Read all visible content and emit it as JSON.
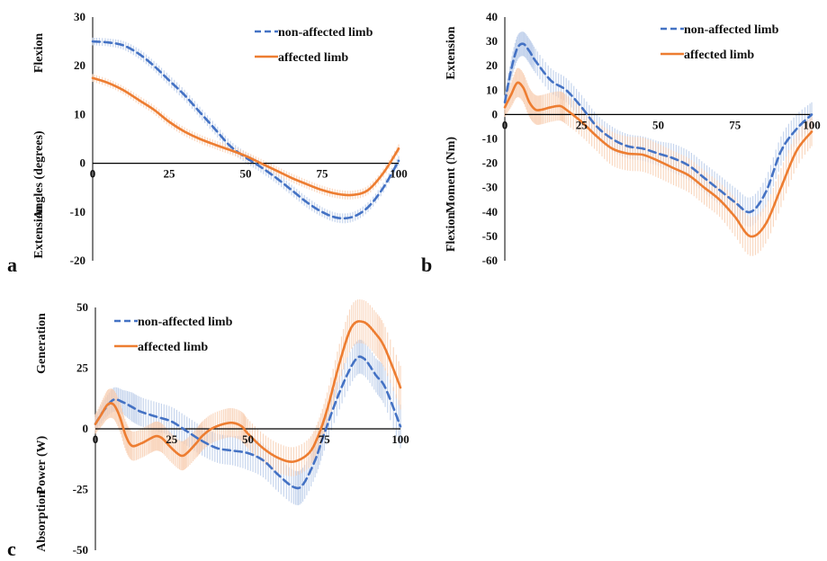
{
  "colors": {
    "non_affected": "#4472C4",
    "non_affected_band": "#B4C7E7",
    "affected": "#ED7D31",
    "affected_band": "#F8CBAD"
  },
  "chart_data": [
    {
      "type": "line",
      "panel": "a",
      "ylabel": "Angles (degrees)",
      "ylabel_top": "Flexion",
      "ylabel_bottom": "Extension",
      "xlim": [
        0,
        100
      ],
      "ylim": [
        -20,
        30
      ],
      "xticks": [
        0,
        25,
        50,
        75,
        100
      ],
      "yticks": [
        -20,
        -10,
        0,
        10,
        20,
        30
      ],
      "legend": "top-right",
      "series": [
        {
          "name": "non-affected limb",
          "style": "dashed",
          "x": [
            0,
            5,
            10,
            15,
            20,
            25,
            30,
            35,
            40,
            45,
            50,
            55,
            60,
            65,
            70,
            75,
            80,
            85,
            90,
            95,
            100
          ],
          "y": [
            25,
            24.8,
            24.2,
            22.5,
            20,
            17,
            14,
            10.5,
            7,
            3.5,
            1.2,
            -0.8,
            -3,
            -5.5,
            -8,
            -10,
            -11.2,
            -11,
            -9,
            -5,
            0.5
          ],
          "sd": [
            0.8,
            0.8,
            0.9,
            1,
            1,
            1.1,
            1.1,
            1.1,
            1.1,
            1.1,
            1.1,
            1.1,
            1.1,
            1.1,
            1.1,
            1,
            1,
            1,
            1,
            1,
            1
          ]
        },
        {
          "name": "affected limb",
          "style": "solid",
          "x": [
            0,
            5,
            10,
            15,
            20,
            25,
            30,
            35,
            40,
            45,
            50,
            55,
            60,
            65,
            70,
            75,
            80,
            85,
            90,
            95,
            100
          ],
          "y": [
            17.5,
            16.5,
            15,
            13,
            11,
            8.5,
            6.5,
            5,
            3.8,
            2.7,
            1.5,
            0,
            -1.5,
            -3,
            -4.3,
            -5.5,
            -6.3,
            -6.5,
            -5.5,
            -2,
            3
          ],
          "sd": [
            0.8,
            0.8,
            0.8,
            0.9,
            0.9,
            0.9,
            0.9,
            0.9,
            0.9,
            0.9,
            0.9,
            0.9,
            0.9,
            0.9,
            0.9,
            0.9,
            0.9,
            0.9,
            0.9,
            0.9,
            0.9
          ]
        }
      ]
    },
    {
      "type": "line",
      "panel": "b",
      "ylabel": "Moment (Nm)",
      "ylabel_top": "Extension",
      "ylabel_bottom": "Flexion",
      "xlim": [
        0,
        100
      ],
      "ylim": [
        -60,
        40
      ],
      "xticks": [
        0,
        25,
        50,
        75,
        100
      ],
      "yticks": [
        -60,
        -50,
        -40,
        -30,
        -20,
        -10,
        0,
        10,
        20,
        30,
        40
      ],
      "legend": "top-right",
      "series": [
        {
          "name": "non-affected limb",
          "style": "dashed",
          "x": [
            0,
            2,
            4,
            6,
            8,
            10,
            15,
            20,
            25,
            30,
            35,
            40,
            45,
            50,
            55,
            60,
            65,
            70,
            75,
            80,
            85,
            90,
            95,
            100
          ],
          "y": [
            5,
            18,
            27,
            29,
            26,
            22,
            14,
            10,
            3,
            -5,
            -10,
            -13,
            -14,
            -16,
            -18,
            -21,
            -26,
            -31,
            -36,
            -40,
            -32,
            -15,
            -6,
            0
          ],
          "sd": [
            3,
            4,
            5,
            5,
            5,
            5,
            5,
            5,
            5,
            5,
            5,
            5,
            5,
            5,
            6,
            6,
            6,
            6,
            6,
            6,
            6,
            6,
            6,
            5
          ]
        },
        {
          "name": "affected limb",
          "style": "solid",
          "x": [
            0,
            2,
            4,
            6,
            8,
            10,
            12,
            15,
            18,
            20,
            25,
            30,
            35,
            40,
            45,
            50,
            55,
            60,
            65,
            70,
            75,
            80,
            85,
            90,
            95,
            100
          ],
          "y": [
            3,
            8,
            13,
            11,
            5,
            2,
            2,
            3,
            3.5,
            2,
            -3,
            -9,
            -14,
            -16,
            -16.5,
            -19,
            -22,
            -25,
            -30,
            -35,
            -42,
            -50,
            -45,
            -30,
            -15,
            -7
          ],
          "sd": [
            4,
            5,
            6,
            6,
            6,
            6,
            6,
            6,
            6,
            6,
            6,
            6,
            7,
            7,
            7,
            7,
            7,
            7,
            7,
            7,
            8,
            8,
            8,
            8,
            7,
            6
          ]
        }
      ]
    },
    {
      "type": "line",
      "panel": "c",
      "ylabel": "Power (W)",
      "ylabel_top": "Generation",
      "ylabel_bottom": "Absorption",
      "xlim": [
        0,
        100
      ],
      "ylim": [
        -50,
        50
      ],
      "xticks": [
        0,
        25,
        50,
        75,
        100
      ],
      "yticks": [
        -50,
        -25,
        0,
        25,
        50
      ],
      "legend": "top-left",
      "series": [
        {
          "name": "non-affected limb",
          "style": "dashed",
          "x": [
            0,
            3,
            6,
            9,
            12,
            15,
            20,
            25,
            30,
            35,
            40,
            45,
            50,
            55,
            60,
            65,
            68,
            72,
            75,
            80,
            85,
            88,
            92,
            95,
            100
          ],
          "y": [
            2,
            8,
            12,
            11,
            9,
            7,
            5,
            3,
            -1,
            -5,
            -8,
            -9,
            -10,
            -13,
            -19,
            -24,
            -23,
            -13,
            -2,
            15,
            28,
            29,
            22,
            17,
            1
          ],
          "sd": [
            3,
            4,
            5,
            5,
            6,
            6,
            6,
            6,
            6,
            6,
            6,
            6,
            7,
            7,
            7,
            7,
            7,
            7,
            7,
            7,
            7,
            7,
            7,
            8,
            9
          ]
        },
        {
          "name": "affected limb",
          "style": "solid",
          "x": [
            0,
            2,
            4,
            6,
            8,
            10,
            12,
            15,
            18,
            20,
            22,
            25,
            28,
            30,
            33,
            35,
            38,
            42,
            45,
            48,
            50,
            55,
            60,
            65,
            70,
            73,
            76,
            80,
            84,
            88,
            92,
            95,
            100
          ],
          "y": [
            2,
            6,
            10,
            10,
            5,
            -3,
            -7,
            -6,
            -4,
            -3,
            -4,
            -8,
            -11,
            -10,
            -6,
            -3,
            0,
            2,
            2.5,
            1,
            -2,
            -8,
            -12,
            -13.5,
            -10,
            -3,
            8,
            27,
            42,
            44,
            39,
            33,
            17
          ],
          "sd": [
            4,
            5,
            6,
            6,
            6,
            6,
            6,
            6,
            6,
            6,
            6,
            6,
            6,
            6,
            6,
            6,
            6,
            6,
            6,
            6,
            6,
            6,
            6,
            6,
            6,
            6,
            7,
            8,
            9,
            9,
            9,
            9,
            9
          ]
        }
      ]
    }
  ]
}
